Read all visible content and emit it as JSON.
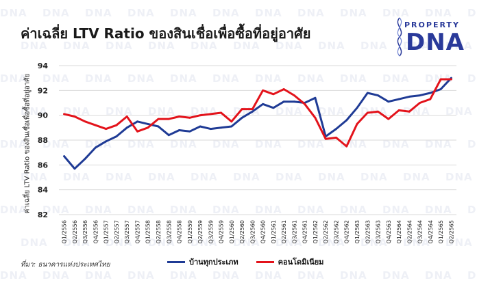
{
  "colors": {
    "blue": "#1f3b95",
    "red": "#e3131b",
    "grid": "#d9d9d9",
    "brand": "#2a3a9a"
  },
  "logo": {
    "top": "PROPERTY",
    "big": "DNA",
    "watermark": "DNA"
  },
  "source": "ที่มา: ธนาคารแห่งประเทศไทย",
  "chart_data": {
    "type": "line",
    "title": "ค่าเฉลี่ย LTV Ratio ของสินเชื่อเพื่อซื้อที่อยู่อาศัย",
    "ylabel": "ค่าเฉลี่ย LTV Ratio ของสินเชื่อเพื่อซื้อที่อยู่อาศัย",
    "xlabel": "",
    "ylim": [
      82,
      94
    ],
    "yticks": [
      82,
      84,
      86,
      88,
      90,
      92,
      94
    ],
    "grid": true,
    "legend": "bottom",
    "categories": [
      "Q1/2556",
      "Q2/2556",
      "Q3/2556",
      "Q4/2556",
      "Q1/2557",
      "Q2/2557",
      "Q3/2557",
      "Q4/2557",
      "Q1/2558",
      "Q2/2558",
      "Q3/2558",
      "Q4/2558",
      "Q1/2559",
      "Q2/2559",
      "Q3/2559",
      "Q4/2559",
      "Q1/2560",
      "Q2/2560",
      "Q3/2560",
      "Q4/2560",
      "Q1/2561",
      "Q2/2561",
      "Q3/2561",
      "Q4/2561",
      "Q1/2562",
      "Q2/2562",
      "Q3/2562",
      "Q4/2562",
      "Q1/2563",
      "Q2/2563",
      "Q3/2563",
      "Q4/2563",
      "Q1/2564",
      "Q2/2564",
      "Q3/2564",
      "Q4/2564",
      "Q1/2565",
      "Q2/2565"
    ],
    "series": [
      {
        "name": "บ้านทุกประเภท",
        "color": "#1f3b95",
        "values": [
          86.7,
          85.7,
          86.5,
          87.4,
          87.9,
          88.3,
          89.0,
          89.5,
          89.3,
          89.1,
          88.4,
          88.8,
          88.7,
          89.1,
          88.9,
          89.0,
          89.1,
          89.8,
          90.3,
          90.9,
          90.6,
          91.1,
          91.1,
          91.0,
          91.4,
          88.3,
          88.9,
          89.6,
          90.6,
          91.8,
          91.6,
          91.1,
          91.3,
          91.5,
          91.6,
          91.8,
          92.1,
          93.0
        ]
      },
      {
        "name": "คอนโดมิเนียม",
        "color": "#e3131b",
        "values": [
          90.1,
          89.9,
          89.5,
          89.2,
          88.9,
          89.2,
          89.9,
          88.7,
          89.0,
          89.7,
          89.7,
          89.9,
          89.8,
          90.0,
          90.1,
          90.2,
          89.5,
          90.5,
          90.5,
          92.0,
          91.7,
          92.1,
          91.6,
          90.9,
          89.8,
          88.1,
          88.2,
          87.5,
          89.3,
          90.2,
          90.3,
          89.7,
          90.4,
          90.3,
          91.0,
          91.3,
          92.9,
          92.9
        ]
      }
    ]
  }
}
